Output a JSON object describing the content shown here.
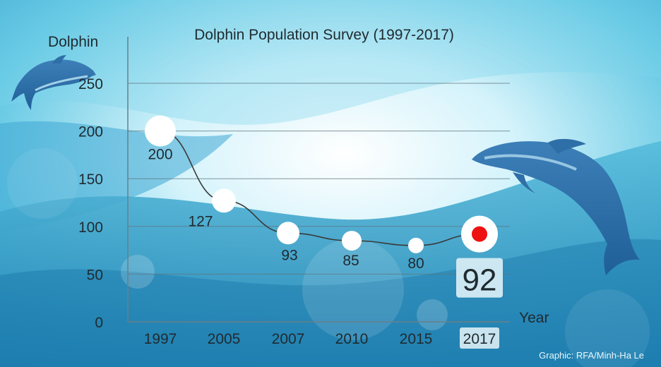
{
  "chart_data": {
    "type": "line",
    "title": "Dolphin Population Survey (1997-2017)",
    "xlabel": "Year",
    "ylabel": "Dolphin",
    "categories": [
      "1997",
      "2005",
      "2007",
      "2010",
      "2015",
      "2017"
    ],
    "values": [
      200,
      127,
      93,
      85,
      80,
      92
    ],
    "data_labels": [
      "200",
      "127",
      "93",
      "85",
      "80",
      "92"
    ],
    "yticks": [
      "0",
      "50",
      "100",
      "150",
      "200",
      "250"
    ],
    "ylim": [
      0,
      250
    ],
    "grid": true,
    "highlight_index": 5,
    "highlight_color": "#ee1111",
    "marker_color": "#ffffff",
    "line_color": "#3a3a3a",
    "background_top": "#dff6fb",
    "background_bottom": "#1f86b6"
  },
  "credit": "Graphic: RFA/Minh-Ha Le"
}
